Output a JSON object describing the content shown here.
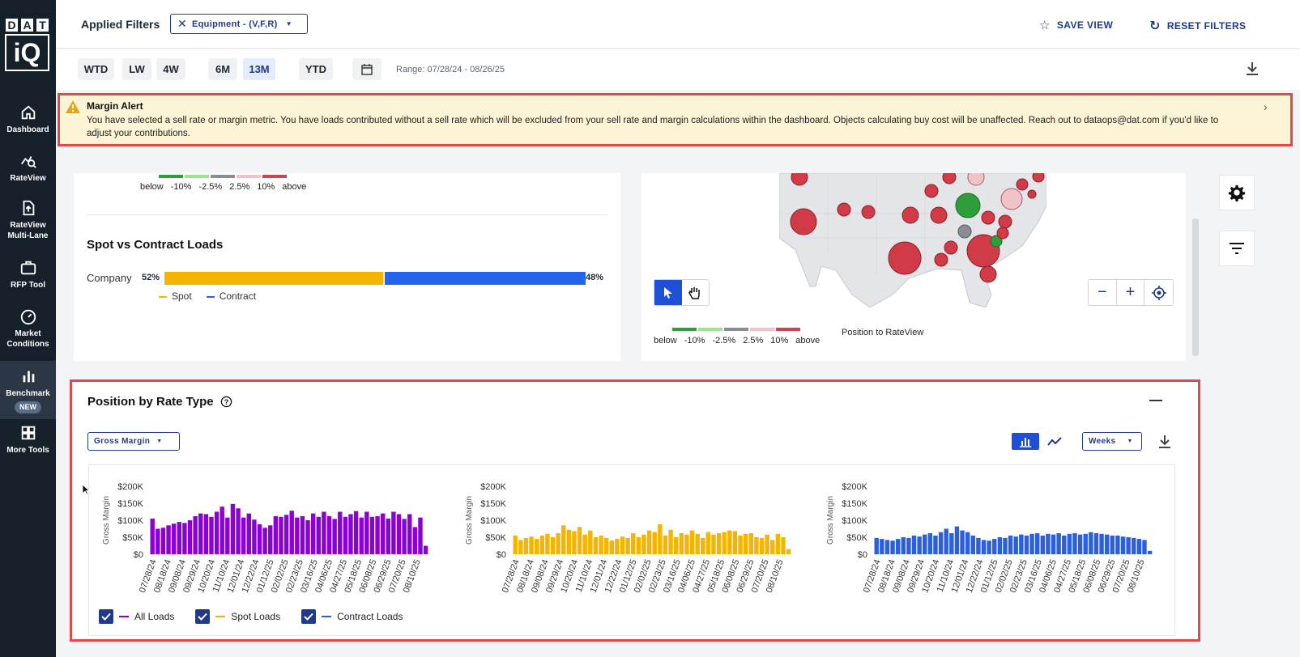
{
  "logo": {
    "letters": [
      "D",
      "A",
      "T"
    ],
    "bottom": "iQ"
  },
  "sidebar": {
    "items": [
      {
        "label": "Dashboard",
        "icon": "home-icon"
      },
      {
        "label": "RateView",
        "icon": "rateview-icon"
      },
      {
        "label": "RateView Multi-Lane",
        "icon": "upload-file-icon"
      },
      {
        "label": "RFP Tool",
        "icon": "briefcase-icon"
      },
      {
        "label": "Market Conditions",
        "icon": "gauge-icon"
      },
      {
        "label": "Benchmark",
        "icon": "bar-chart-icon",
        "badge": "NEW"
      },
      {
        "label": "More Tools",
        "icon": "grid-icon"
      }
    ]
  },
  "header": {
    "applied_filters": "Applied Filters",
    "equipment_chip": "Equipment - (V,F,R)",
    "save_view": "SAVE VIEW",
    "reset_filters": "RESET FILTERS"
  },
  "timebar": {
    "buttons": [
      "WTD",
      "LW",
      "4W",
      "6M",
      "13M",
      "YTD"
    ],
    "selected": "13M",
    "range": "Range: 07/28/24 - 08/26/25"
  },
  "alert": {
    "title": "Margin Alert",
    "body": "You have selected a sell rate or margin metric. You have loads contributed without a sell rate which will be excluded from your sell rate and margin calculations within the dashboard. Objects calculating buy cost will be unaffected. Reach out to dataops@dat.com if you'd like to adjust your contributions."
  },
  "position_legend": {
    "labels": [
      "below",
      "-10%",
      "-2.5%",
      "2.5%",
      "10%",
      "above"
    ],
    "colors": [
      "#2e9e3a",
      "#9be58f",
      "#8a8d92",
      "#f1c2c8",
      "#d0424f"
    ],
    "map_label": "Position to RateView"
  },
  "spot_contract": {
    "title": "Spot vs Contract Loads",
    "row_label": "Company",
    "spot_pct": "52%",
    "contract_pct": "48%",
    "spot_value": 52,
    "contract_value": 48,
    "spot_color": "#f4b400",
    "contract_color": "#2563eb",
    "legend_spot": "Spot",
    "legend_contract": "Contract"
  },
  "position_by_rate": {
    "title": "Position by Rate Type",
    "metric_select": "Gross Margin",
    "period_select": "Weeks",
    "legend": [
      {
        "label": "All Loads",
        "color": "#8b00d4"
      },
      {
        "label": "Spot Loads",
        "color": "#f4b400"
      },
      {
        "label": "Contract Loads",
        "color": "#2b5fe0"
      }
    ]
  },
  "chart_data": [
    {
      "type": "bar",
      "ylabel": "Gross Margin",
      "ylim": [
        0,
        200000
      ],
      "yticks": [
        "$0",
        "$50K",
        "$100K",
        "$150K",
        "$200K"
      ],
      "xtick_labels": [
        "07/28/24",
        "08/18/24",
        "09/08/24",
        "09/29/24",
        "10/20/24",
        "11/10/24",
        "12/01/24",
        "12/22/24",
        "01/12/25",
        "02/02/25",
        "02/23/25",
        "03/16/25",
        "04/06/25",
        "04/27/25",
        "05/18/25",
        "06/08/25",
        "06/29/25",
        "07/20/25",
        "08/10/25"
      ],
      "series": [
        {
          "name": "All Loads",
          "color": "#8b00d4",
          "values": [
            105000,
            75000,
            78000,
            85000,
            90000,
            95000,
            92000,
            100000,
            112000,
            120000,
            118000,
            110000,
            125000,
            140000,
            108000,
            148000,
            135000,
            108000,
            120000,
            102000,
            88000,
            78000,
            85000,
            112000,
            110000,
            116000,
            128000,
            108000,
            112000,
            100000,
            120000,
            110000,
            125000,
            112000,
            104000,
            125000,
            110000,
            118000,
            127000,
            108000,
            125000,
            110000,
            112000,
            120000,
            105000,
            125000,
            118000,
            104000,
            118000,
            80000,
            108000,
            25000
          ]
        }
      ]
    },
    {
      "type": "bar",
      "ylabel": "Gross Margin",
      "ylim": [
        0,
        200000
      ],
      "yticks": [
        "$0",
        "$50K",
        "$100K",
        "$150K",
        "$200K"
      ],
      "xtick_labels": [
        "07/28/24",
        "08/18/24",
        "09/08/24",
        "09/29/24",
        "10/20/24",
        "11/10/24",
        "12/01/24",
        "12/22/24",
        "01/12/25",
        "02/02/25",
        "02/23/25",
        "03/16/25",
        "04/06/25",
        "04/27/25",
        "05/18/25",
        "06/08/25",
        "06/29/25",
        "07/20/25",
        "08/10/25"
      ],
      "series": [
        {
          "name": "Spot Loads",
          "color": "#f4b400",
          "values": [
            55000,
            42000,
            48000,
            52000,
            45000,
            55000,
            60000,
            50000,
            62000,
            85000,
            72000,
            68000,
            80000,
            58000,
            70000,
            50000,
            55000,
            48000,
            40000,
            45000,
            52000,
            48000,
            62000,
            50000,
            58000,
            70000,
            65000,
            88000,
            55000,
            72000,
            50000,
            62000,
            58000,
            70000,
            60000,
            48000,
            65000,
            58000,
            62000,
            65000,
            70000,
            68000,
            55000,
            60000,
            62000,
            50000,
            48000,
            58000,
            42000,
            60000,
            50000,
            15000
          ]
        }
      ]
    },
    {
      "type": "bar",
      "ylabel": "Gross Margin",
      "ylim": [
        0,
        200000
      ],
      "yticks": [
        "$0",
        "$50K",
        "$100K",
        "$150K",
        "$200K"
      ],
      "xtick_labels": [
        "07/28/24",
        "08/18/24",
        "09/08/24",
        "09/29/24",
        "10/20/24",
        "11/10/24",
        "12/01/24",
        "12/22/24",
        "01/12/25",
        "02/02/25",
        "02/23/25",
        "03/16/25",
        "04/06/25",
        "04/27/25",
        "05/18/25",
        "06/08/25",
        "06/29/25",
        "07/20/25",
        "08/10/25"
      ],
      "series": [
        {
          "name": "Contract Loads",
          "color": "#2b5fe0",
          "values": [
            48000,
            45000,
            42000,
            40000,
            45000,
            50000,
            48000,
            55000,
            52000,
            58000,
            62000,
            55000,
            65000,
            75000,
            62000,
            82000,
            70000,
            65000,
            55000,
            48000,
            42000,
            40000,
            45000,
            50000,
            48000,
            55000,
            52000,
            58000,
            55000,
            60000,
            62000,
            55000,
            60000,
            58000,
            62000,
            55000,
            60000,
            62000,
            58000,
            60000,
            65000,
            62000,
            60000,
            58000,
            55000,
            55000,
            52000,
            50000,
            48000,
            45000,
            42000,
            10000
          ]
        }
      ]
    }
  ]
}
